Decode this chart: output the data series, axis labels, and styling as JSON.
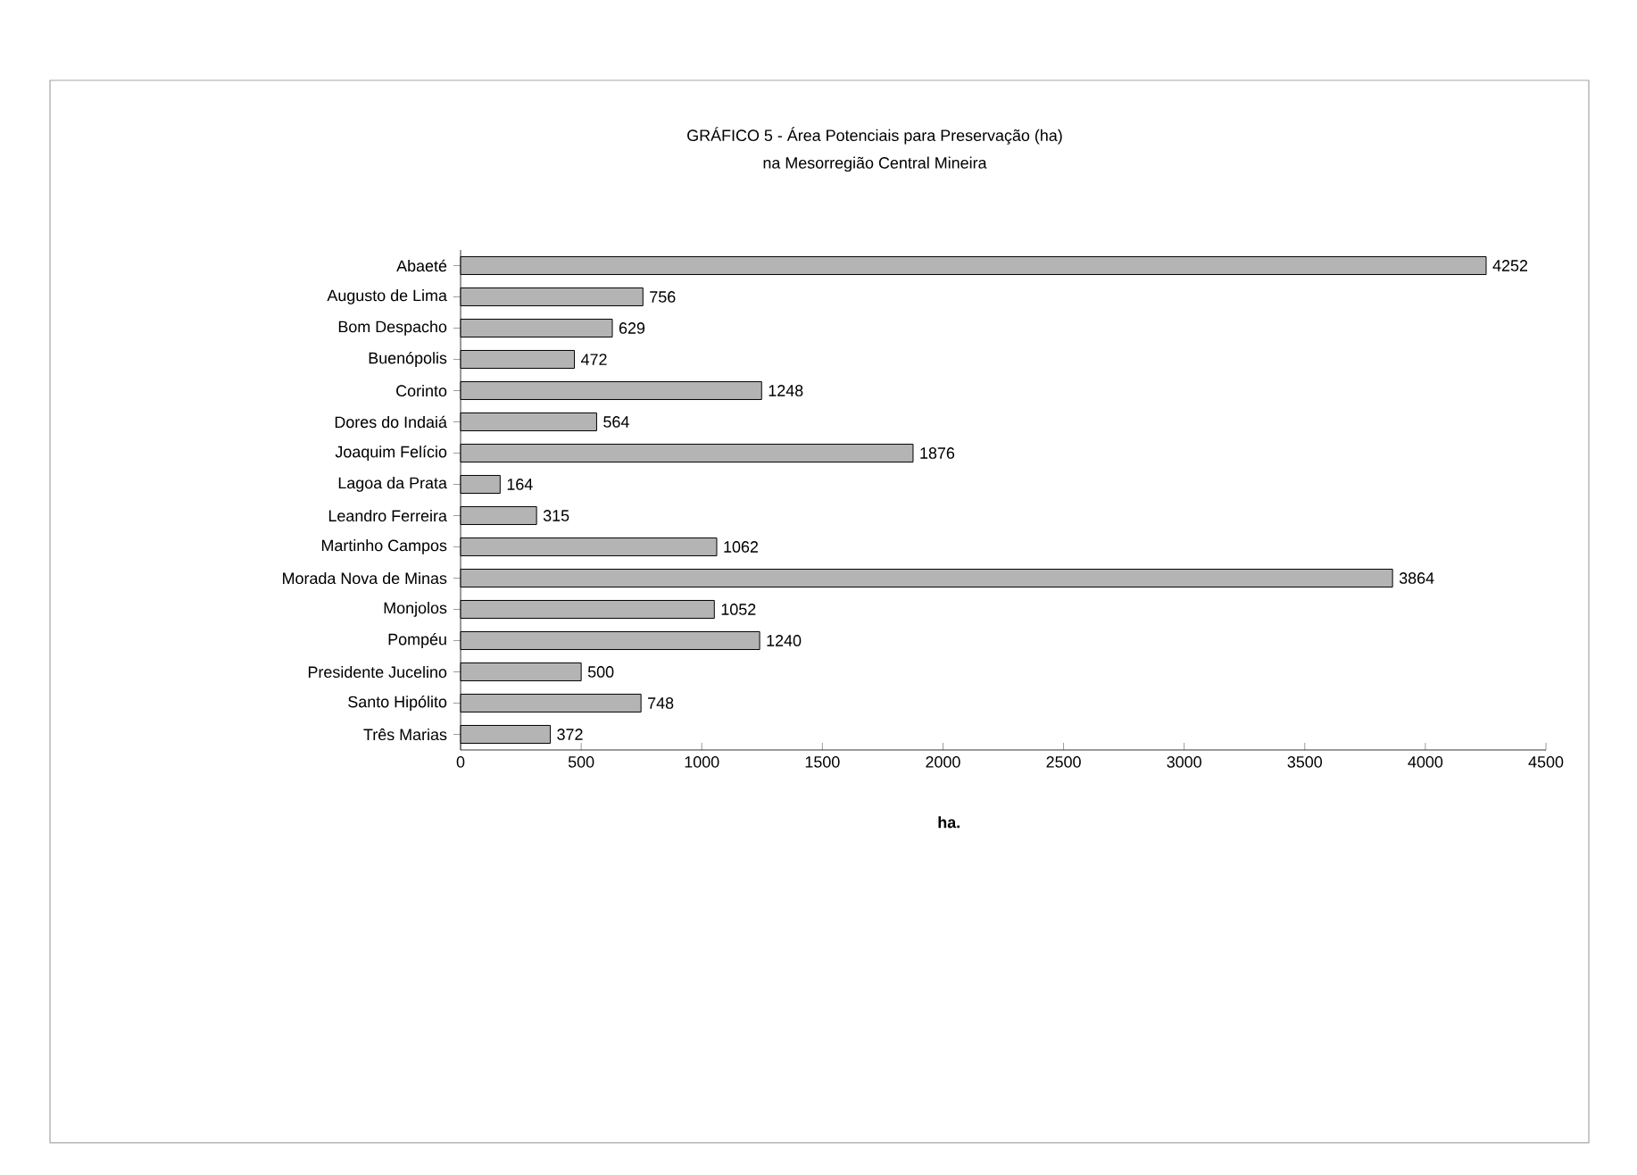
{
  "chart_data": {
    "type": "bar",
    "orientation": "horizontal",
    "title": "GRÁFICO 5 - Área Potenciais para Preservação (ha)",
    "subtitle": "na Mesorregião Central Mineira",
    "xlabel": "ha.",
    "categories": [
      "Abaeté",
      "Augusto de Lima",
      "Bom Despacho",
      "Buenópolis",
      "Corinto",
      "Dores do Indaiá",
      "Joaquim Felício",
      "Lagoa da Prata",
      "Leandro Ferreira",
      "Martinho Campos",
      "Morada Nova de Minas",
      "Monjolos",
      "Pompéu",
      "Presidente Jucelino",
      "Santo Hipólito",
      "Três Marias"
    ],
    "values": [
      4252,
      756,
      629,
      472,
      1248,
      564,
      1876,
      164,
      315,
      1062,
      3864,
      1052,
      1240,
      500,
      748,
      372
    ],
    "color": "#b4b4b4",
    "data_labels": true,
    "grid": false,
    "xlim": [
      0,
      4500
    ],
    "xticks": [
      0,
      500,
      1000,
      1500,
      2000,
      2500,
      3000,
      3500,
      4000,
      4500
    ]
  }
}
